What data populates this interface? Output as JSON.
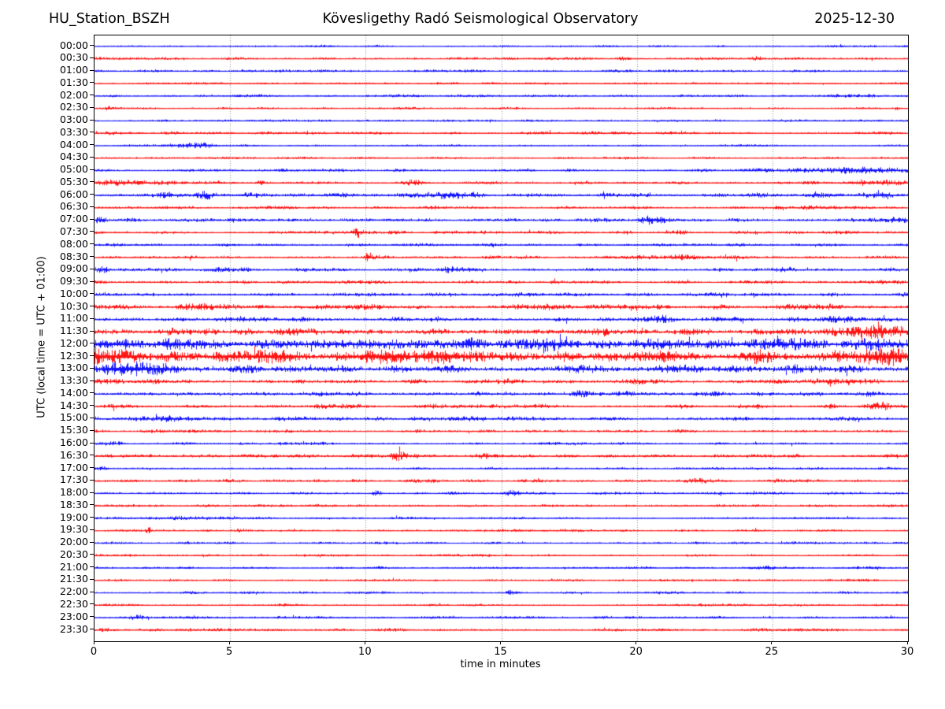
{
  "header": {
    "station": "HU_Station_BSZH",
    "title": "Kövesligethy Radó Seismological Observatory",
    "date": "2025-12-30"
  },
  "axes": {
    "xlabel": "time in minutes",
    "ylabel": "UTC (local time = UTC + 01:00)"
  },
  "chart_data": {
    "type": "line",
    "subtype": "helicorder-seismogram",
    "station": "HU_Station_BSZH",
    "title": "Kövesligethy Radó Seismological Observatory",
    "date": "2025-12-30",
    "xlabel": "time in minutes",
    "ylabel": "UTC (local time = UTC + 01:00)",
    "xlim": [
      0,
      30
    ],
    "x_ticks": [
      0,
      5,
      10,
      15,
      20,
      25,
      30
    ],
    "grid": "vertical dotted lines every 5 minutes",
    "grid_color": "#777777",
    "row_interval_min": 30,
    "n_rows": 48,
    "trace_colors": {
      "even_rows": "#0000ff",
      "odd_rows": "#ff0000"
    },
    "event_format": [
      "minute",
      "sigma_minutes",
      "amplitude_px"
    ],
    "rows": [
      {
        "time": "00:00",
        "color": "#0000ff",
        "noise": 1.0,
        "events": []
      },
      {
        "time": "00:30",
        "color": "#ff0000",
        "noise": 1.1,
        "events": [
          [
            19.5,
            0.15,
            1.6
          ],
          [
            24.4,
            0.12,
            1.4
          ]
        ]
      },
      {
        "time": "01:00",
        "color": "#0000ff",
        "noise": 1.2,
        "events": []
      },
      {
        "time": "01:30",
        "color": "#ff0000",
        "noise": 1.1,
        "events": []
      },
      {
        "time": "02:00",
        "color": "#0000ff",
        "noise": 1.2,
        "events": [
          [
            27.8,
            0.5,
            0.9
          ]
        ]
      },
      {
        "time": "02:30",
        "color": "#ff0000",
        "noise": 1.0,
        "events": [
          [
            0.5,
            0.25,
            1.2
          ],
          [
            29.6,
            0.1,
            1.3
          ]
        ]
      },
      {
        "time": "03:00",
        "color": "#0000ff",
        "noise": 1.0,
        "events": [
          [
            2.6,
            0.2,
            0.8
          ]
        ]
      },
      {
        "time": "03:30",
        "color": "#ff0000",
        "noise": 1.3,
        "events": []
      },
      {
        "time": "04:00",
        "color": "#0000ff",
        "noise": 1.0,
        "events": [
          [
            3.7,
            0.5,
            2.3
          ]
        ]
      },
      {
        "time": "04:30",
        "color": "#ff0000",
        "noise": 1.0,
        "events": []
      },
      {
        "time": "05:00",
        "color": "#0000ff",
        "noise": 1.2,
        "events": [
          [
            26.5,
            2.0,
            1.3
          ],
          [
            28.6,
            1.0,
            1.7
          ]
        ]
      },
      {
        "time": "05:30",
        "color": "#ff0000",
        "noise": 1.4,
        "events": [
          [
            1.0,
            0.9,
            2.0
          ],
          [
            6.1,
            0.15,
            1.3
          ],
          [
            11.7,
            0.2,
            1.9
          ],
          [
            28.3,
            0.15,
            2.6
          ],
          [
            29.4,
            0.7,
            1.6
          ]
        ]
      },
      {
        "time": "06:00",
        "color": "#0000ff",
        "noise": 2.2,
        "events": [
          [
            2.7,
            0.3,
            2.0
          ],
          [
            4.1,
            0.25,
            2.6
          ],
          [
            13.0,
            0.4,
            1.8
          ]
        ]
      },
      {
        "time": "06:30",
        "color": "#ff0000",
        "noise": 1.5,
        "events": [
          [
            26.3,
            0.3,
            1.2
          ]
        ]
      },
      {
        "time": "07:00",
        "color": "#0000ff",
        "noise": 1.6,
        "events": [
          [
            0.2,
            0.15,
            2.6
          ],
          [
            18.8,
            0.3,
            1.3
          ],
          [
            20.6,
            0.35,
            3.4
          ],
          [
            29.5,
            0.4,
            2.0
          ]
        ]
      },
      {
        "time": "07:30",
        "color": "#ff0000",
        "noise": 1.5,
        "events": [
          [
            9.7,
            0.12,
            3.6
          ],
          [
            21.6,
            0.3,
            1.4
          ]
        ]
      },
      {
        "time": "08:00",
        "color": "#0000ff",
        "noise": 1.3,
        "events": []
      },
      {
        "time": "08:30",
        "color": "#ff0000",
        "noise": 1.5,
        "events": [
          [
            10.1,
            0.1,
            3.4
          ],
          [
            22.0,
            1.5,
            0.9
          ]
        ]
      },
      {
        "time": "09:00",
        "color": "#0000ff",
        "noise": 1.6,
        "events": [
          [
            0.3,
            0.2,
            2.0
          ],
          [
            4.6,
            0.6,
            1.2
          ],
          [
            13.1,
            0.3,
            1.6
          ],
          [
            25.4,
            0.3,
            1.3
          ]
        ]
      },
      {
        "time": "09:30",
        "color": "#ff0000",
        "noise": 1.5,
        "events": [
          [
            17.0,
            0.1,
            2.6
          ]
        ]
      },
      {
        "time": "10:00",
        "color": "#0000ff",
        "noise": 1.8,
        "events": []
      },
      {
        "time": "10:30",
        "color": "#ff0000",
        "noise": 2.2,
        "events": [
          [
            3.5,
            0.4,
            1.4
          ],
          [
            15.6,
            0.5,
            1.4
          ],
          [
            26.5,
            0.8,
            1.5
          ]
        ]
      },
      {
        "time": "11:00",
        "color": "#0000ff",
        "noise": 2.2,
        "events": [
          [
            20.9,
            0.3,
            2.2
          ],
          [
            27.3,
            0.4,
            2.5
          ]
        ]
      },
      {
        "time": "11:30",
        "color": "#ff0000",
        "noise": 3.2,
        "events": [
          [
            28.8,
            1.2,
            3.2
          ]
        ]
      },
      {
        "time": "12:00",
        "color": "#0000ff",
        "noise": 4.4,
        "events": [
          [
            1.0,
            0.8,
            2.6
          ],
          [
            8.6,
            0.5,
            2.0
          ],
          [
            11.6,
            1.5,
            2.0
          ],
          [
            17.0,
            0.6,
            2.0
          ],
          [
            21.2,
            0.8,
            2.6
          ],
          [
            25.6,
            0.7,
            2.4
          ],
          [
            29.2,
            0.9,
            3.0
          ]
        ]
      },
      {
        "time": "12:30",
        "color": "#ff0000",
        "noise": 4.4,
        "events": [
          [
            0.7,
            0.8,
            3.6
          ],
          [
            6.6,
            1.0,
            2.0
          ],
          [
            12.1,
            1.5,
            2.4
          ],
          [
            19.0,
            0.6,
            2.0
          ],
          [
            24.8,
            0.5,
            2.4
          ],
          [
            29.2,
            0.9,
            3.4
          ]
        ]
      },
      {
        "time": "13:00",
        "color": "#0000ff",
        "noise": 3.4,
        "events": [
          [
            1.3,
            1.0,
            4.0
          ],
          [
            22.0,
            0.4,
            2.0
          ]
        ]
      },
      {
        "time": "13:30",
        "color": "#ff0000",
        "noise": 2.2,
        "events": [
          [
            0.5,
            0.5,
            1.4
          ]
        ]
      },
      {
        "time": "14:00",
        "color": "#0000ff",
        "noise": 2.0,
        "events": [
          [
            14.1,
            0.2,
            1.4
          ],
          [
            17.8,
            0.2,
            1.8
          ],
          [
            24.6,
            0.3,
            1.4
          ]
        ]
      },
      {
        "time": "14:30",
        "color": "#ff0000",
        "noise": 1.8,
        "events": [
          [
            24.1,
            0.3,
            1.2
          ],
          [
            29.1,
            0.25,
            3.0
          ]
        ]
      },
      {
        "time": "15:00",
        "color": "#0000ff",
        "noise": 1.8,
        "events": [
          [
            2.7,
            0.2,
            2.0
          ],
          [
            14.1,
            0.3,
            1.4
          ]
        ]
      },
      {
        "time": "15:30",
        "color": "#ff0000",
        "noise": 1.4,
        "events": []
      },
      {
        "time": "16:00",
        "color": "#0000ff",
        "noise": 1.3,
        "events": [
          [
            0.7,
            0.3,
            1.2
          ]
        ]
      },
      {
        "time": "16:30",
        "color": "#ff0000",
        "noise": 1.5,
        "events": [
          [
            11.2,
            0.25,
            3.4
          ],
          [
            14.3,
            0.3,
            1.8
          ],
          [
            29.4,
            0.2,
            2.2
          ]
        ]
      },
      {
        "time": "17:00",
        "color": "#0000ff",
        "noise": 1.2,
        "events": [
          [
            0.3,
            0.2,
            1.3
          ]
        ]
      },
      {
        "time": "17:30",
        "color": "#ff0000",
        "noise": 1.5,
        "events": [
          [
            22.1,
            0.4,
            1.3
          ]
        ]
      },
      {
        "time": "18:00",
        "color": "#0000ff",
        "noise": 1.3,
        "events": [
          [
            10.4,
            0.12,
            2.4
          ],
          [
            15.4,
            0.2,
            2.3
          ]
        ]
      },
      {
        "time": "18:30",
        "color": "#ff0000",
        "noise": 1.3,
        "events": []
      },
      {
        "time": "19:00",
        "color": "#0000ff",
        "noise": 1.1,
        "events": [
          [
            2.9,
            0.8,
            1.4
          ]
        ]
      },
      {
        "time": "19:30",
        "color": "#ff0000",
        "noise": 1.1,
        "events": [
          [
            2.0,
            0.12,
            2.4
          ],
          [
            5.4,
            0.2,
            0.9
          ]
        ]
      },
      {
        "time": "20:00",
        "color": "#0000ff",
        "noise": 1.1,
        "events": [
          [
            11.0,
            0.3,
            0.8
          ]
        ]
      },
      {
        "time": "20:30",
        "color": "#ff0000",
        "noise": 1.1,
        "events": []
      },
      {
        "time": "21:00",
        "color": "#0000ff",
        "noise": 1.1,
        "events": [
          [
            24.9,
            0.2,
            1.0
          ]
        ]
      },
      {
        "time": "21:30",
        "color": "#ff0000",
        "noise": 1.0,
        "events": []
      },
      {
        "time": "22:00",
        "color": "#0000ff",
        "noise": 1.1,
        "events": [
          [
            15.4,
            0.15,
            2.6
          ],
          [
            21.1,
            0.3,
            0.8
          ]
        ]
      },
      {
        "time": "22:30",
        "color": "#ff0000",
        "noise": 1.1,
        "events": []
      },
      {
        "time": "23:00",
        "color": "#0000ff",
        "noise": 1.2,
        "events": [
          [
            1.6,
            0.25,
            1.3
          ]
        ]
      },
      {
        "time": "23:30",
        "color": "#ff0000",
        "noise": 1.3,
        "events": [
          [
            0.4,
            0.25,
            1.5
          ]
        ]
      }
    ]
  }
}
